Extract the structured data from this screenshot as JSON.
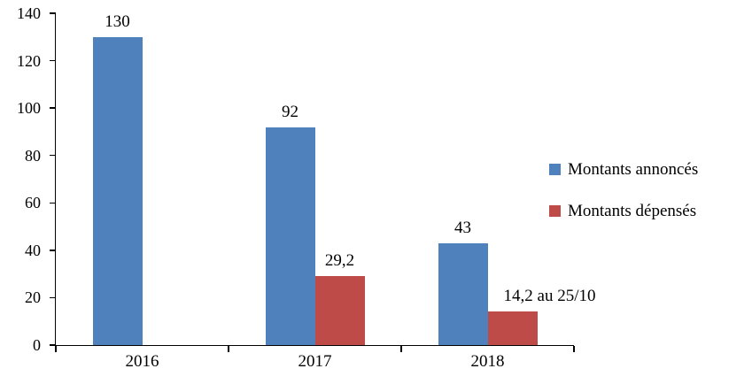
{
  "chart_data": {
    "type": "bar",
    "categories": [
      "2016",
      "2017",
      "2018"
    ],
    "series": [
      {
        "name": "Montants annoncés",
        "color": "#4F81BD",
        "values": [
          130,
          92,
          43
        ],
        "labels": [
          "130",
          "92",
          "43"
        ]
      },
      {
        "name": "Montants dépensés",
        "color": "#BE4B48",
        "values": [
          0,
          29.2,
          14.2
        ],
        "labels": [
          "",
          "29,2",
          "14,2 au 25/10"
        ]
      }
    ],
    "ylim": [
      0,
      140
    ],
    "yticks": [
      0,
      20,
      40,
      60,
      80,
      100,
      120,
      140
    ],
    "grid": false,
    "legend_position": "right",
    "axis_color": "#000000"
  }
}
